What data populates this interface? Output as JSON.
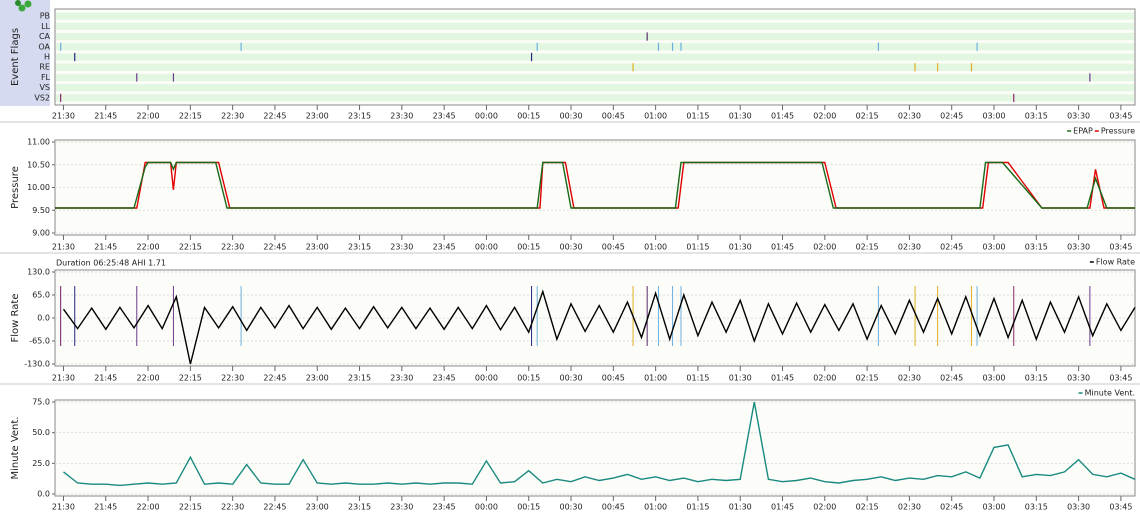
{
  "chart_data": [
    {
      "type": "events",
      "ylabel": "Event Flags",
      "xlim": [
        "21:27",
        "03:50"
      ],
      "xticks": [
        "21:30",
        "21:45",
        "22:00",
        "22:15",
        "22:30",
        "22:45",
        "23:00",
        "23:15",
        "23:30",
        "23:45",
        "00:00",
        "00:15",
        "00:30",
        "00:45",
        "01:00",
        "01:15",
        "01:30",
        "01:45",
        "02:00",
        "02:15",
        "02:30",
        "02:45",
        "03:00",
        "03:15",
        "03:30",
        "03:45"
      ],
      "rows": [
        {
          "name": "PB",
          "color": "#3a8a3a",
          "events": []
        },
        {
          "name": "LL",
          "color": "#3a8a3a",
          "events": []
        },
        {
          "name": "CA",
          "color": "#5a2a6a",
          "events": [
            "00:57"
          ]
        },
        {
          "name": "OA",
          "color": "#6ab0e0",
          "events": [
            "21:29",
            "22:33",
            "00:18",
            "01:01",
            "01:06",
            "01:09",
            "02:19",
            "02:54"
          ]
        },
        {
          "name": "H",
          "color": "#202880",
          "events": [
            "21:34",
            "00:16"
          ]
        },
        {
          "name": "RE",
          "color": "#e0b020",
          "events": [
            "00:52",
            "02:32",
            "02:40",
            "02:52"
          ]
        },
        {
          "name": "FL",
          "color": "#6a3a8a",
          "events": [
            "21:56",
            "22:09",
            "03:34"
          ]
        },
        {
          "name": "VS",
          "color": "#c02020",
          "events": []
        },
        {
          "name": "VS2",
          "color": "#8a2a6a",
          "events": [
            "21:29",
            "03:07"
          ]
        }
      ]
    },
    {
      "type": "line",
      "ylabel": "Pressure",
      "xlim": [
        "21:27",
        "03:50"
      ],
      "xticks": [
        "21:30",
        "21:45",
        "22:00",
        "22:15",
        "22:30",
        "22:45",
        "23:00",
        "23:15",
        "23:30",
        "23:45",
        "00:00",
        "00:15",
        "00:30",
        "00:45",
        "01:00",
        "01:15",
        "01:30",
        "01:45",
        "02:00",
        "02:15",
        "02:30",
        "02:45",
        "03:00",
        "03:15",
        "03:30",
        "03:45"
      ],
      "ylim": [
        9,
        11
      ],
      "yticks": [
        {
          "value": 9,
          "label": "9.00"
        },
        {
          "value": 9.5,
          "label": "9.50"
        },
        {
          "value": 10,
          "label": "10.00"
        },
        {
          "value": 10.5,
          "label": "10.50"
        },
        {
          "value": 11,
          "label": "11.00"
        }
      ],
      "grid": true,
      "series": [
        {
          "name": "EPAP",
          "color": "#1a6a1a",
          "x": [
            "21:27",
            "21:55",
            "21:59",
            "22:00",
            "22:08",
            "22:09",
            "22:10",
            "22:24",
            "22:28",
            "00:18",
            "00:20",
            "00:27",
            "00:30",
            "01:07",
            "01:09",
            "01:59",
            "02:03",
            "02:55",
            "02:57",
            "03:03",
            "03:17",
            "03:33",
            "03:36",
            "03:40",
            "03:50"
          ],
          "values": [
            9.55,
            9.55,
            10.45,
            10.55,
            10.55,
            10.4,
            10.55,
            10.55,
            9.55,
            9.55,
            10.55,
            10.55,
            9.55,
            9.55,
            10.55,
            10.55,
            9.55,
            9.55,
            10.55,
            10.55,
            9.55,
            9.55,
            10.2,
            9.55,
            9.55
          ]
        },
        {
          "name": "Pressure",
          "color": "#e00000",
          "x": [
            "21:27",
            "21:56",
            "21:59",
            "22:08",
            "22:09",
            "22:10",
            "22:25",
            "22:29",
            "00:19",
            "00:20",
            "00:28",
            "00:31",
            "01:08",
            "01:10",
            "02:00",
            "02:04",
            "02:56",
            "02:58",
            "03:05",
            "03:17",
            "03:34",
            "03:36",
            "03:39",
            "03:50"
          ],
          "values": [
            9.55,
            9.55,
            10.55,
            10.55,
            9.95,
            10.55,
            10.55,
            9.55,
            9.55,
            10.55,
            10.55,
            9.55,
            9.55,
            10.55,
            10.55,
            9.55,
            9.55,
            10.55,
            10.55,
            9.55,
            9.55,
            10.4,
            9.55,
            9.55
          ]
        }
      ]
    },
    {
      "type": "line",
      "ylabel": "Flow Rate",
      "annotation": "Duration 06:25:48 AHI 1.71",
      "show_events": true,
      "xlim": [
        "21:27",
        "03:50"
      ],
      "xticks": [
        "21:30",
        "21:45",
        "22:00",
        "22:15",
        "22:30",
        "22:45",
        "23:00",
        "23:15",
        "23:30",
        "23:45",
        "00:00",
        "00:15",
        "00:30",
        "00:45",
        "01:00",
        "01:15",
        "01:30",
        "01:45",
        "02:00",
        "02:15",
        "02:30",
        "02:45",
        "03:00",
        "03:15",
        "03:30",
        "03:45"
      ],
      "ylim": [
        -130,
        130
      ],
      "yticks": [
        {
          "value": -130,
          "label": "-130.0"
        },
        {
          "value": -65,
          "label": "-65.0"
        },
        {
          "value": 0,
          "label": "0.0"
        },
        {
          "value": 65,
          "label": "65.0"
        },
        {
          "value": 130,
          "label": "130.0"
        }
      ],
      "grid": true,
      "x": [
        "21:30",
        "21:35",
        "21:40",
        "21:45",
        "21:50",
        "21:55",
        "22:00",
        "22:05",
        "22:10",
        "22:15",
        "22:20",
        "22:25",
        "22:30",
        "22:35",
        "22:40",
        "22:45",
        "22:50",
        "22:55",
        "23:00",
        "23:05",
        "23:10",
        "23:15",
        "23:20",
        "23:25",
        "23:30",
        "23:35",
        "23:40",
        "23:45",
        "23:50",
        "23:55",
        "00:00",
        "00:05",
        "00:10",
        "00:15",
        "00:20",
        "00:25",
        "00:30",
        "00:35",
        "00:40",
        "00:45",
        "00:50",
        "00:55",
        "01:00",
        "01:05",
        "01:10",
        "01:15",
        "01:20",
        "01:25",
        "01:30",
        "01:35",
        "01:40",
        "01:45",
        "01:50",
        "01:55",
        "02:00",
        "02:05",
        "02:10",
        "02:15",
        "02:20",
        "02:25",
        "02:30",
        "02:35",
        "02:40",
        "02:45",
        "02:50",
        "02:55",
        "03:00",
        "03:05",
        "03:10",
        "03:15",
        "03:20",
        "03:25",
        "03:30",
        "03:35",
        "03:40",
        "03:45",
        "03:50"
      ],
      "series": [
        {
          "name": "Flow Rate",
          "color": "#000000",
          "values": [
            25,
            -30,
            28,
            -32,
            30,
            -28,
            35,
            -30,
            60,
            -130,
            30,
            -28,
            32,
            -35,
            30,
            -28,
            35,
            -30,
            30,
            -32,
            28,
            -30,
            32,
            -28,
            30,
            -30,
            28,
            -32,
            30,
            -30,
            35,
            -33,
            30,
            -40,
            75,
            -60,
            40,
            -38,
            35,
            -40,
            45,
            -55,
            70,
            -60,
            65,
            -50,
            45,
            -40,
            50,
            -65,
            40,
            -45,
            42,
            -40,
            38,
            -35,
            40,
            -60,
            35,
            -45,
            50,
            -40,
            55,
            -45,
            60,
            -50,
            55,
            -55,
            50,
            -60,
            45,
            -40,
            60,
            -50,
            40,
            -35,
            30
          ]
        }
      ]
    },
    {
      "type": "line",
      "ylabel": "Minute Vent.",
      "xlim": [
        "21:27",
        "03:50"
      ],
      "xticks": [
        "21:30",
        "21:45",
        "22:00",
        "22:15",
        "22:30",
        "22:45",
        "23:00",
        "23:15",
        "23:30",
        "23:45",
        "00:00",
        "00:15",
        "00:30",
        "00:45",
        "01:00",
        "01:15",
        "01:30",
        "01:45",
        "02:00",
        "02:15",
        "02:30",
        "02:45",
        "03:00",
        "03:15",
        "03:30",
        "03:45"
      ],
      "ylim": [
        0,
        75
      ],
      "yticks": [
        {
          "value": 0,
          "label": "0.0"
        },
        {
          "value": 25,
          "label": "25.0"
        },
        {
          "value": 50,
          "label": "50.0"
        },
        {
          "value": 75,
          "label": "75.0"
        }
      ],
      "grid": true,
      "x": [
        "21:30",
        "21:35",
        "21:40",
        "21:45",
        "21:50",
        "21:55",
        "22:00",
        "22:05",
        "22:10",
        "22:15",
        "22:20",
        "22:25",
        "22:30",
        "22:35",
        "22:40",
        "22:45",
        "22:50",
        "22:55",
        "23:00",
        "23:05",
        "23:10",
        "23:15",
        "23:20",
        "23:25",
        "23:30",
        "23:35",
        "23:40",
        "23:45",
        "23:50",
        "23:55",
        "00:00",
        "00:05",
        "00:10",
        "00:15",
        "00:20",
        "00:25",
        "00:30",
        "00:35",
        "00:40",
        "00:45",
        "00:50",
        "00:55",
        "01:00",
        "01:05",
        "01:10",
        "01:15",
        "01:20",
        "01:25",
        "01:30",
        "01:35",
        "01:40",
        "01:45",
        "01:50",
        "01:55",
        "02:00",
        "02:05",
        "02:10",
        "02:15",
        "02:20",
        "02:25",
        "02:30",
        "02:35",
        "02:40",
        "02:45",
        "02:50",
        "02:55",
        "03:00",
        "03:05",
        "03:10",
        "03:15",
        "03:20",
        "03:25",
        "03:30",
        "03:35",
        "03:40",
        "03:45",
        "03:50"
      ],
      "series": [
        {
          "name": "Minute Vent.",
          "color": "#1a8a80",
          "values": [
            18,
            9,
            8,
            8,
            7,
            8,
            9,
            8,
            9,
            30,
            8,
            9,
            8,
            24,
            9,
            8,
            8,
            28,
            9,
            8,
            9,
            8,
            8,
            9,
            8,
            9,
            8,
            9,
            9,
            8,
            27,
            9,
            10,
            19,
            9,
            12,
            10,
            14,
            11,
            13,
            16,
            12,
            14,
            11,
            13,
            10,
            12,
            11,
            12,
            75,
            12,
            10,
            11,
            13,
            10,
            9,
            11,
            12,
            14,
            11,
            13,
            12,
            15,
            14,
            18,
            13,
            38,
            40,
            14,
            16,
            15,
            18,
            28,
            16,
            14,
            17,
            12
          ]
        }
      ]
    }
  ]
}
